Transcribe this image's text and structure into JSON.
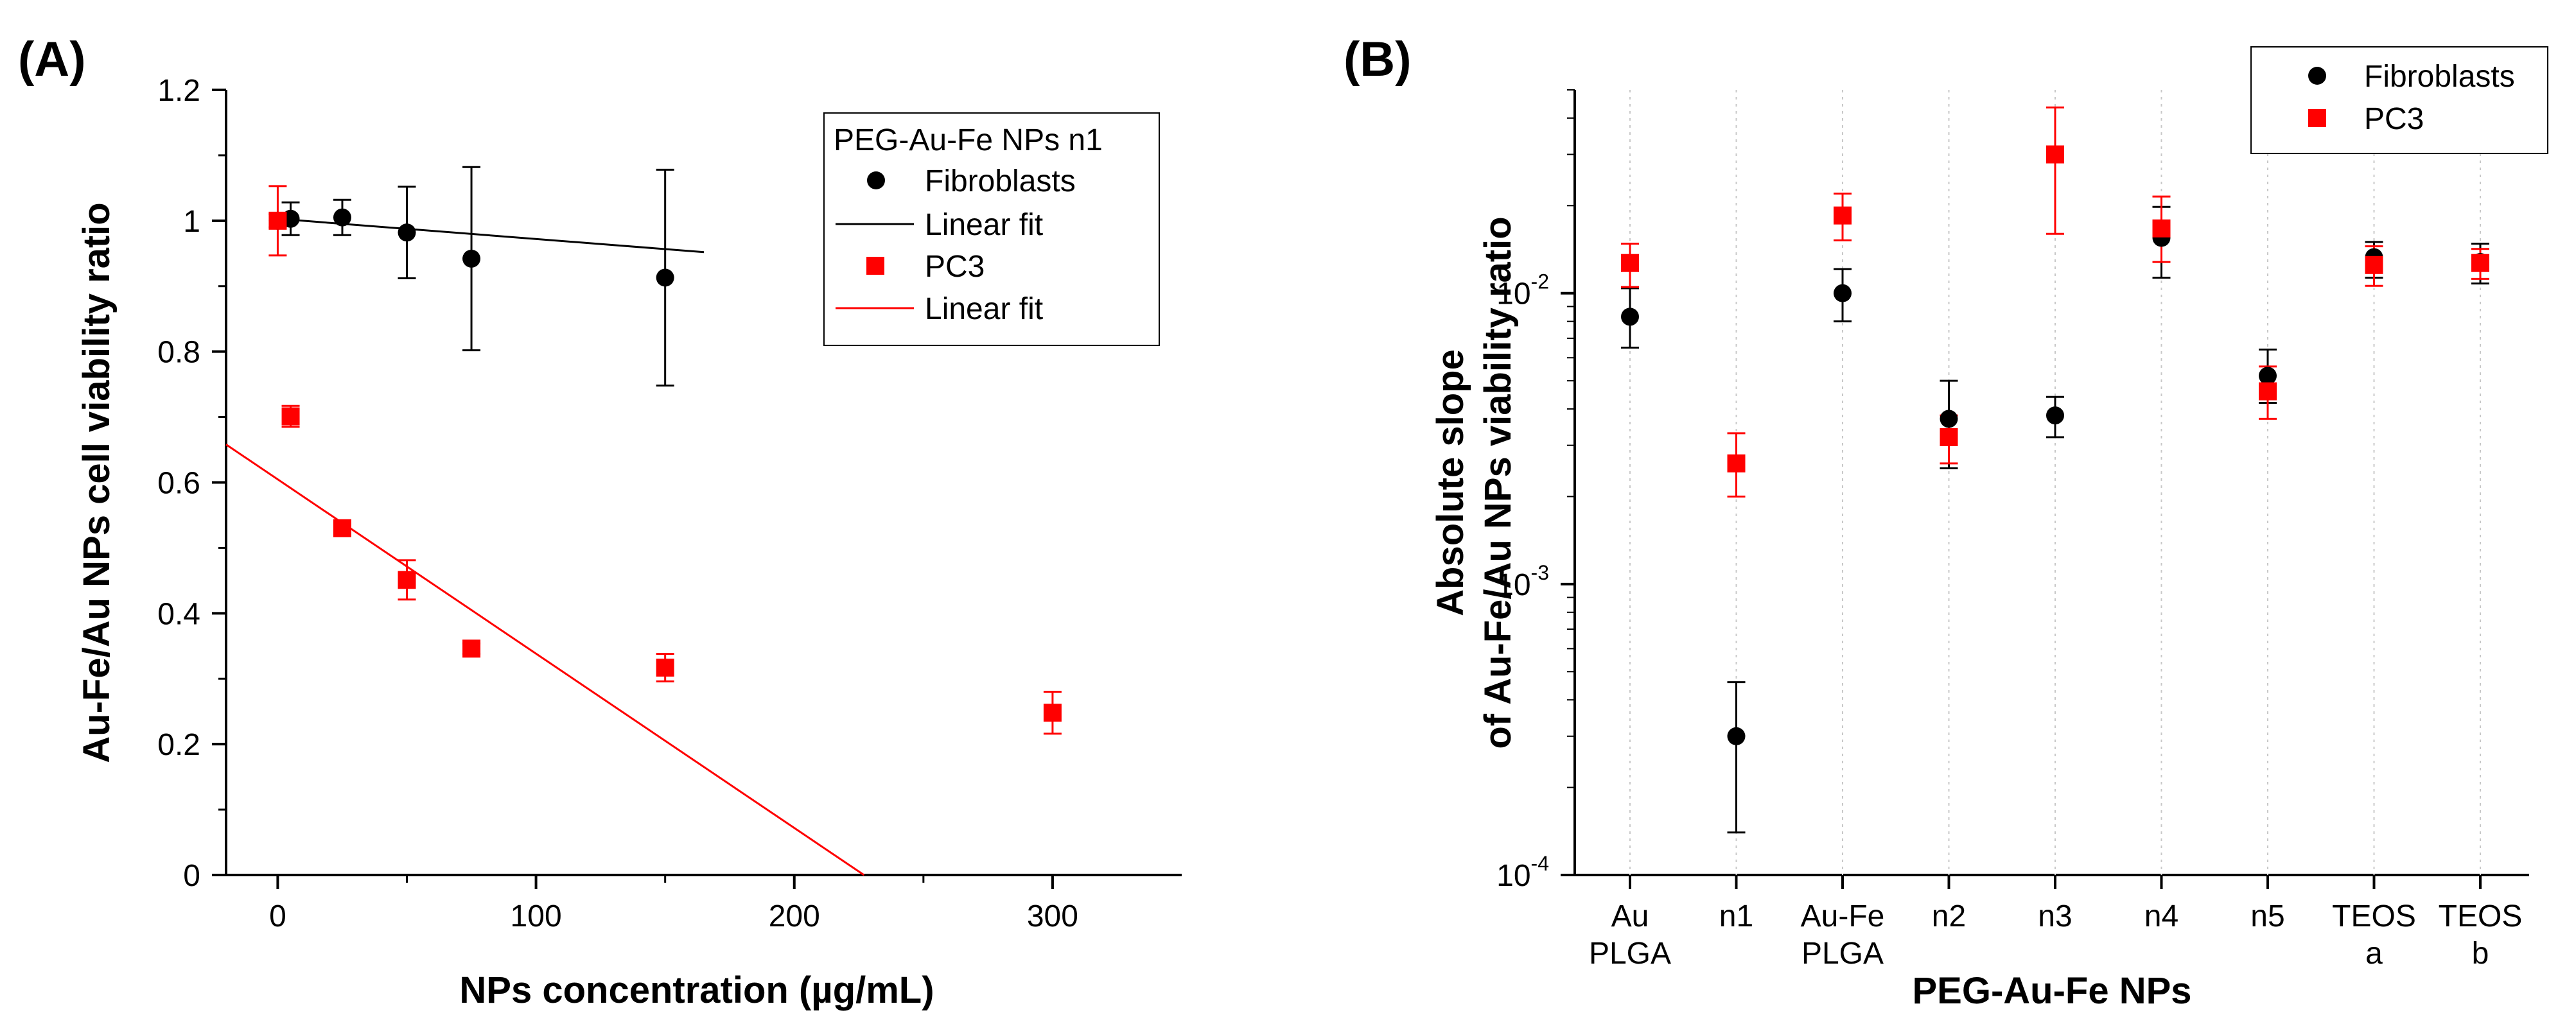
{
  "chart_data": [
    {
      "panel": "(A)",
      "type": "scatter",
      "xlabel": "NPs concentration (µg/mL)",
      "ylabel": "Au-Fe/Au NPs cell viability ratio",
      "xlim": [
        -20,
        350
      ],
      "ylim": [
        0,
        1.2
      ],
      "xticks": [
        0,
        100,
        200,
        300
      ],
      "xtick_labels": [
        "0",
        "100",
        "200",
        "300"
      ],
      "yticks": [
        0,
        0.2,
        0.4,
        0.6,
        0.8,
        1,
        1.2
      ],
      "ytick_labels": [
        "0",
        "0.2",
        "0.4",
        "0.6",
        "0.8",
        "1",
        "1.2"
      ],
      "legend_title": "PEG-Au-Fe NPs n1",
      "legend_position": "top-right",
      "series": [
        {
          "name": "Fibroblasts",
          "marker": "circle",
          "color": "#000000",
          "points": [
            {
              "x": 0,
              "y": 1.0,
              "err": 0.01
            },
            {
              "x": 5,
              "y": 1.003,
              "err": 0.025
            },
            {
              "x": 25,
              "y": 1.005,
              "err": 0.027
            },
            {
              "x": 50,
              "y": 0.982,
              "err": 0.07
            },
            {
              "x": 75,
              "y": 0.942,
              "err": 0.14
            },
            {
              "x": 150,
              "y": 0.913,
              "err": 0.165
            }
          ],
          "fit": {
            "name": "Linear fit",
            "x0": 0,
            "y0": 1.003,
            "x1": 165,
            "y1": 0.952
          }
        },
        {
          "name": "PC3",
          "marker": "square",
          "color": "#ff0000",
          "points": [
            {
              "x": 0,
              "y": 1.0,
              "err": 0.053
            },
            {
              "x": 5,
              "y": 0.701,
              "err": 0.016
            },
            {
              "x": 25,
              "y": 0.53,
              "err": 0.008
            },
            {
              "x": 50,
              "y": 0.451,
              "err": 0.03
            },
            {
              "x": 75,
              "y": 0.346,
              "err": 0.008
            },
            {
              "x": 150,
              "y": 0.317,
              "err": 0.021
            },
            {
              "x": 300,
              "y": 0.248,
              "err": 0.032
            }
          ],
          "fit": {
            "name": "Linear fit",
            "x0": -20,
            "y0": 0.658,
            "x1": 227,
            "y1": 0
          }
        }
      ]
    },
    {
      "panel": "(B)",
      "type": "scatter",
      "yscale": "log",
      "xlabel": "PEG-Au-Fe NPs",
      "ylabel": [
        "Absolute slope",
        "of Au-Fe/Au NPs viability ratio"
      ],
      "ylim": [
        0.0001,
        0.05
      ],
      "yticks": [
        0.0001,
        0.001,
        0.01
      ],
      "ytick_labels": [
        [
          "10",
          "-4"
        ],
        [
          "10",
          "-3"
        ],
        [
          "10",
          "-2"
        ]
      ],
      "categories": [
        [
          "Au",
          "PLGA"
        ],
        [
          "n1"
        ],
        [
          "Au-Fe",
          "PLGA"
        ],
        [
          "n2"
        ],
        [
          "n3"
        ],
        [
          "n4"
        ],
        [
          "n5"
        ],
        [
          "TEOS",
          "a"
        ],
        [
          "TEOS",
          "b"
        ]
      ],
      "legend_position": "top-right",
      "series": [
        {
          "name": "Fibroblasts",
          "marker": "circle",
          "color": "#000000",
          "values": [
            0.0083,
            0.0003,
            0.01,
            0.0037,
            0.0038,
            0.0155,
            0.0052,
            0.0133,
            0.0128
          ],
          "err_low": [
            0.0065,
            0.00014,
            0.008,
            0.0025,
            0.0032,
            0.0113,
            0.0042,
            0.0113,
            0.0108
          ],
          "err_high": [
            0.0104,
            0.00046,
            0.0121,
            0.005,
            0.0044,
            0.0198,
            0.0064,
            0.015,
            0.0148
          ]
        },
        {
          "name": "PC3",
          "marker": "square",
          "color": "#ff0000",
          "values": [
            0.0127,
            0.0026,
            0.0185,
            0.0032,
            0.03,
            0.0167,
            0.0046,
            0.0125,
            0.0127
          ],
          "err_low": [
            0.0105,
            0.002,
            0.0152,
            0.0026,
            0.016,
            0.0128,
            0.0037,
            0.0106,
            0.0112
          ],
          "err_high": [
            0.0148,
            0.0033,
            0.022,
            0.0038,
            0.0435,
            0.0215,
            0.0056,
            0.0145,
            0.0142
          ]
        }
      ]
    }
  ]
}
